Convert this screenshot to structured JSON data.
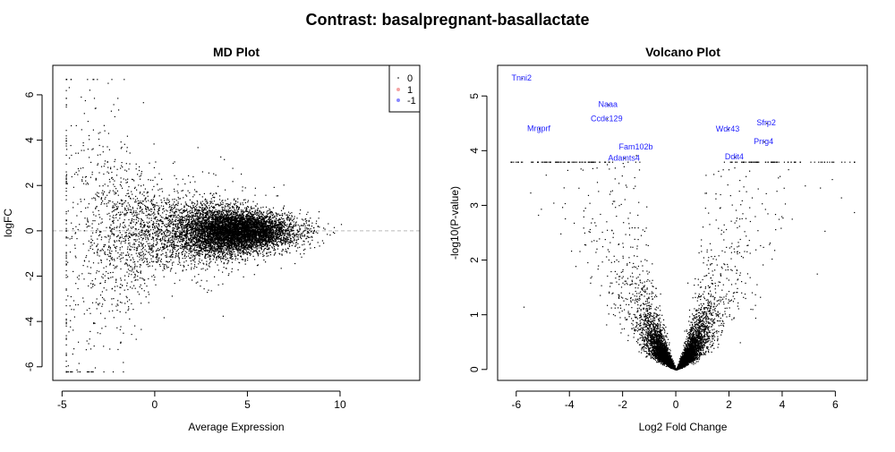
{
  "title": "Contrast: basalpregnant-basallactate",
  "chart_data": [
    {
      "type": "scatter",
      "title": "MD Plot",
      "xlabel": "Average Expression",
      "ylabel": "logFC",
      "xlim": [
        -5.5,
        14.3
      ],
      "ylim": [
        -6.6,
        7.3
      ],
      "xticks": [
        "-5",
        "0",
        "5",
        "10"
      ],
      "yticks": [
        "-6",
        "-4",
        "-2",
        "0",
        "2",
        "4",
        "6"
      ],
      "reference_line": {
        "y": 0,
        "style": "dashed",
        "color": "#bbbbbb"
      },
      "legend": {
        "position": "top-right",
        "entries": [
          {
            "label": "0",
            "color": "#000000"
          },
          {
            "label": "1",
            "color": "#f4a3a3"
          },
          {
            "label": "-1",
            "color": "#8888ff"
          }
        ]
      },
      "grid": false
    },
    {
      "type": "scatter",
      "title": "Volcano Plot",
      "xlabel": "Log2 Fold Change",
      "ylabel": "-log10(P-value)",
      "xlim": [
        -6.7,
        7.2
      ],
      "ylim": [
        -0.2,
        5.56
      ],
      "xticks": [
        "-6",
        "-4",
        "-2",
        "0",
        "2",
        "4",
        "6"
      ],
      "yticks": [
        "0",
        "1",
        "2",
        "3",
        "4",
        "5"
      ],
      "label_color": "#2222ff",
      "labeled_genes": [
        {
          "gene": "Tnni2",
          "x": -5.8,
          "y": 5.33
        },
        {
          "gene": "Naaa",
          "x": -2.55,
          "y": 4.85
        },
        {
          "gene": "Ccdc129",
          "x": -2.6,
          "y": 4.59
        },
        {
          "gene": "Mrgprf",
          "x": -5.15,
          "y": 4.41
        },
        {
          "gene": "Adamts4",
          "x": -1.95,
          "y": 3.87
        },
        {
          "gene": "Fam102b",
          "x": -1.5,
          "y": 3.92
        },
        {
          "gene": "Wdr43",
          "x": 1.95,
          "y": 4.4
        },
        {
          "gene": "Sfrp2",
          "x": 3.4,
          "y": 4.51
        },
        {
          "gene": "Prrg4",
          "x": 3.3,
          "y": 4.17
        },
        {
          "gene": "Ddit4",
          "x": 2.2,
          "y": 3.89
        }
      ],
      "grid": false
    }
  ]
}
